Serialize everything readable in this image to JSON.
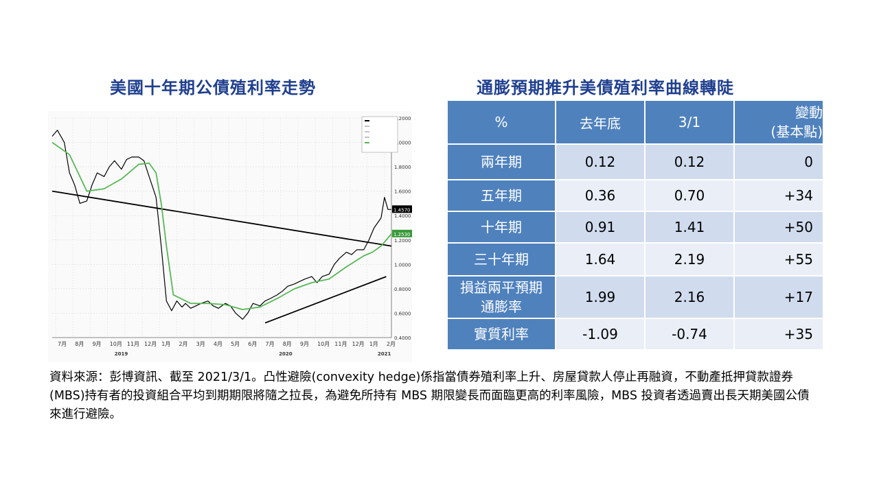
{
  "left_title": "美國十年期公債殖利率走勢",
  "right_title": "通膨預期推升美債殖利率曲線轉陡",
  "chart_data": {
    "type": "line",
    "title": "",
    "xlabel": "",
    "ylabel": "",
    "ylim": [
      0.4,
      2.2
    ],
    "grid": true,
    "legend_position": "top-right",
    "x_tick_labels": [
      "7月",
      "8月",
      "9月",
      "10月",
      "11月",
      "12月",
      "1月",
      "2月",
      "3月",
      "4月",
      "5月",
      "6月",
      "7月",
      "8月",
      "9月",
      "10月",
      "11月",
      "12月",
      "1月",
      "2月"
    ],
    "year_labels": [
      "2019",
      "2020",
      "2021"
    ],
    "y_tick_labels": [
      "0.4000",
      "0.6000",
      "0.8000",
      "1.0000",
      "1.2000",
      "1.4000",
      "1.6000",
      "1.8000",
      "2.0000",
      "2.2000"
    ],
    "last_value_labels": [
      "1.4570",
      "1.2530"
    ],
    "series": [
      {
        "color": "#000000",
        "x": [
          0,
          0.3,
          0.7,
          1.0,
          1.3,
          1.6,
          2.0,
          2.3,
          2.6,
          3.0,
          3.3,
          3.6,
          4.0,
          4.3,
          4.6,
          5.0,
          5.3,
          5.6,
          6.0,
          6.3,
          6.6,
          6.9,
          7.2,
          7.5,
          7.7,
          8.0,
          8.3,
          8.6,
          9.0,
          9.3,
          9.6,
          10.0,
          10.3,
          10.6,
          11.0,
          11.3,
          11.6,
          12.0,
          12.3,
          12.6,
          13.0,
          13.3,
          13.6,
          14.0,
          14.3,
          14.6,
          15.0,
          15.3,
          15.6,
          16.0,
          16.3,
          16.6,
          17.0,
          17.3,
          17.6,
          18.0,
          18.3,
          18.6,
          19.0,
          19.2,
          19.4,
          19.6
        ],
        "values": [
          2.05,
          2.1,
          2.0,
          1.75,
          1.65,
          1.5,
          1.52,
          1.65,
          1.75,
          1.72,
          1.8,
          1.85,
          1.78,
          1.86,
          1.88,
          1.88,
          1.85,
          1.72,
          1.55,
          1.15,
          0.7,
          0.62,
          0.7,
          0.65,
          0.68,
          0.64,
          0.66,
          0.68,
          0.7,
          0.66,
          0.64,
          0.68,
          0.66,
          0.6,
          0.55,
          0.6,
          0.68,
          0.66,
          0.7,
          0.72,
          0.75,
          0.78,
          0.82,
          0.84,
          0.86,
          0.88,
          0.9,
          0.85,
          0.9,
          0.92,
          1.0,
          1.05,
          1.1,
          1.08,
          1.12,
          1.12,
          1.2,
          1.3,
          1.38,
          1.55,
          1.45,
          1.45
        ]
      },
      {
        "color": "#55b855",
        "x": [
          0,
          1,
          2,
          3,
          4,
          5,
          5.6,
          6.0,
          6.3,
          6.6,
          7,
          8,
          9,
          10,
          11,
          12,
          13,
          14,
          15,
          16,
          17,
          18,
          18.5,
          19,
          19.3,
          19.6
        ],
        "values": [
          2.0,
          1.9,
          1.6,
          1.62,
          1.7,
          1.82,
          1.83,
          1.75,
          1.5,
          1.15,
          0.75,
          0.68,
          0.68,
          0.67,
          0.63,
          0.65,
          0.72,
          0.8,
          0.85,
          0.88,
          0.98,
          1.07,
          1.1,
          1.15,
          1.2,
          1.25
        ]
      }
    ],
    "trendlines": [
      {
        "x": [
          0,
          19.6
        ],
        "values": [
          1.6,
          1.15
        ]
      },
      {
        "x": [
          12.3,
          19.3
        ],
        "values": [
          0.52,
          0.9
        ]
      }
    ]
  },
  "table": {
    "headers": [
      "%",
      "去年底",
      "3/1",
      "變動\n(基本點)"
    ],
    "rows": [
      {
        "label": "兩年期",
        "end_last_year": "0.12",
        "mar1": "0.12",
        "change": "0"
      },
      {
        "label": "五年期",
        "end_last_year": "0.36",
        "mar1": "0.70",
        "change": "+34"
      },
      {
        "label": "十年期",
        "end_last_year": "0.91",
        "mar1": "1.41",
        "change": "+50"
      },
      {
        "label": "三十年期",
        "end_last_year": "1.64",
        "mar1": "2.19",
        "change": "+55"
      },
      {
        "label": "損益兩平預期\n通膨率",
        "end_last_year": "1.99",
        "mar1": "2.16",
        "change": "+17"
      },
      {
        "label": "實質利率",
        "end_last_year": "-1.09",
        "mar1": "-0.74",
        "change": "+35"
      }
    ]
  },
  "note": "資料來源：彭博資訊、截至 2021/3/1。凸性避險(convexity hedge)係指當債券殖利率上升、房屋貸款人停止再融資，不動產抵押貸款證券(MBS)持有者的投資組合平均到期期限將隨之拉長，為避免所持有 MBS 期限變長而面臨更高的利率風險，MBS 投資者透過賣出長天期美國公債來進行避險。"
}
